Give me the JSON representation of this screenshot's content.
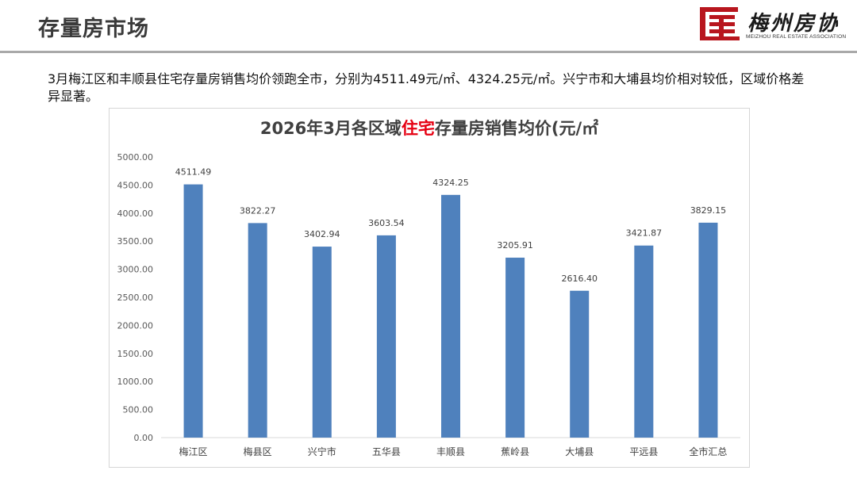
{
  "header": {
    "title": "存量房市场",
    "logo_text": "梅州房协",
    "logo_subtext": "MEIZHOU REAL ESTATE ASSOCIATION",
    "brand_color": "#b8161e"
  },
  "description": "3月梅江区和丰顺县住宅存量房销售均价领跑全市，分别为4511.49元/㎡、4324.25元/㎡。兴宁市和大埔县均价相对较低，区域价格差异显著。",
  "chart_data": {
    "type": "bar",
    "title": {
      "prefix": "2026年3月各区域",
      "highlight": "住宅",
      "suffix": "存量房销售均价(元/㎡"
    },
    "categories": [
      "梅江区",
      "梅县区",
      "兴宁市",
      "五华县",
      "丰顺县",
      "蕉岭县",
      "大埔县",
      "平远县",
      "全市汇总"
    ],
    "values": [
      4511.49,
      3822.27,
      3402.94,
      3603.54,
      4324.25,
      3205.91,
      2616.4,
      3421.87,
      3829.15
    ],
    "value_labels": [
      "4511.49",
      "3822.27",
      "3402.94",
      "3603.54",
      "4324.25",
      "3205.91",
      "2616.40",
      "3421.87",
      "3829.15"
    ],
    "ylim": [
      0,
      5000
    ],
    "yticks": [
      "0.00",
      "500.00",
      "1000.00",
      "1500.00",
      "2000.00",
      "2500.00",
      "3000.00",
      "3500.00",
      "4000.00",
      "4500.00",
      "5000.00"
    ],
    "grid": false,
    "bar_color": "#4f81bd",
    "highlight_color": "#e60012"
  }
}
